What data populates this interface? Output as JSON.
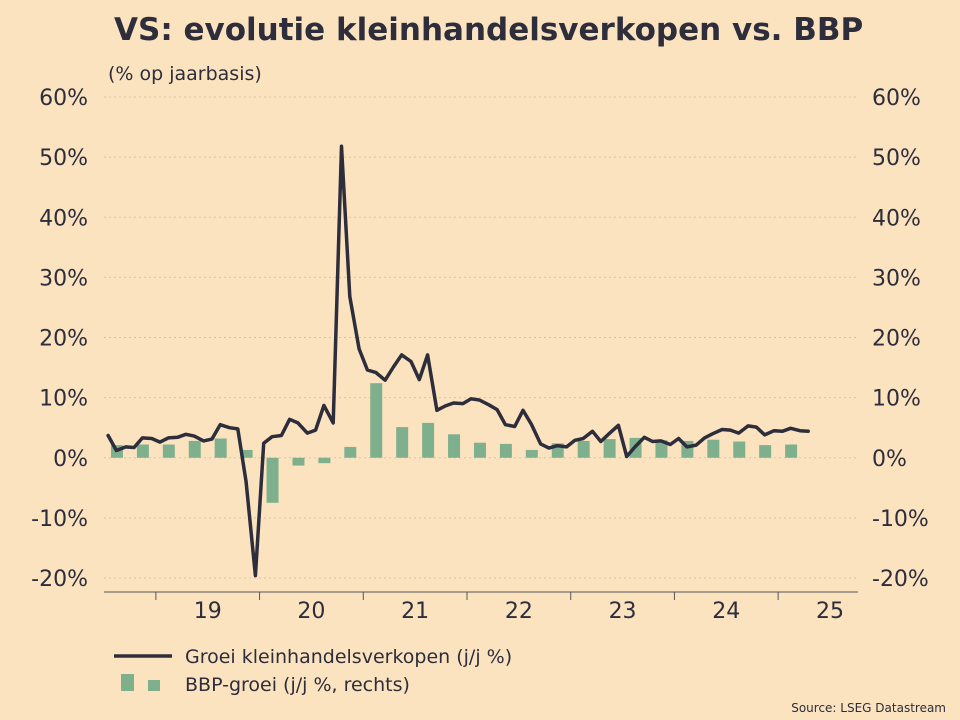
{
  "chart_data": {
    "type": "line",
    "title": "VS: evolutie kleinhandelsverkopen vs. BBP",
    "subtitle": "(% op jaarbasis)",
    "source": "Source: LSEG Datastream",
    "y_ticks_left": [
      "60%",
      "50%",
      "40%",
      "30%",
      "20%",
      "10%",
      "0%",
      "-10%",
      "-20%"
    ],
    "y_ticks_right": [
      "60%",
      "50%",
      "40%",
      "30%",
      "20%",
      "10%",
      "0%",
      "-10%",
      "-20%"
    ],
    "ylim": [
      -20,
      60
    ],
    "x_ticks": [
      "19",
      "20",
      "21",
      "22",
      "23",
      "24",
      "25"
    ],
    "xlim": [
      2018.5,
      2025.77
    ],
    "legend": {
      "line_label": "Groei kleinhandelsverkopen (j/j %)",
      "bar_label": "BBP-groei (j/j %, rechts)"
    },
    "series": [
      {
        "name": "Groei kleinhandelsverkopen (j/j %)",
        "type": "line",
        "axis": "left",
        "x": [
          2018.54,
          2018.62,
          2018.71,
          2018.79,
          2018.87,
          2018.96,
          2019.04,
          2019.12,
          2019.21,
          2019.29,
          2019.37,
          2019.46,
          2019.54,
          2019.62,
          2019.71,
          2019.79,
          2019.87,
          2019.96,
          2020.04,
          2020.12,
          2020.21,
          2020.29,
          2020.37,
          2020.46,
          2020.54,
          2020.62,
          2020.71,
          2020.79,
          2020.87,
          2020.96,
          2021.04,
          2021.12,
          2021.21,
          2021.29,
          2021.37,
          2021.46,
          2021.54,
          2021.62,
          2021.71,
          2021.79,
          2021.87,
          2021.96,
          2022.04,
          2022.12,
          2022.21,
          2022.29,
          2022.37,
          2022.46,
          2022.54,
          2022.62,
          2022.71,
          2022.79,
          2022.87,
          2022.96,
          2023.04,
          2023.12,
          2023.21,
          2023.29,
          2023.37,
          2023.46,
          2023.54,
          2023.62,
          2023.71,
          2023.79,
          2023.87,
          2023.96,
          2024.04,
          2024.12,
          2024.21,
          2024.29,
          2024.37,
          2024.46,
          2024.54,
          2024.62,
          2024.71,
          2024.79,
          2024.87,
          2024.96,
          2025.04,
          2025.12,
          2025.21,
          2025.29
        ],
        "values": [
          3.7,
          1.2,
          1.8,
          1.7,
          3.3,
          3.2,
          2.6,
          3.3,
          3.4,
          3.9,
          3.6,
          2.8,
          3.1,
          5.5,
          5.0,
          4.8,
          -4.0,
          -19.6,
          2.4,
          3.5,
          3.7,
          6.4,
          5.8,
          4.1,
          4.6,
          8.7,
          5.8,
          51.8,
          26.8,
          18.1,
          14.6,
          14.2,
          12.9,
          15.1,
          17.1,
          16.0,
          13.0,
          17.1,
          7.9,
          8.6,
          9.1,
          9.0,
          9.8,
          9.6,
          8.8,
          8.0,
          5.5,
          5.2,
          7.9,
          5.6,
          2.3,
          1.6,
          2.0,
          1.8,
          2.9,
          3.2,
          4.4,
          2.7,
          4.0,
          5.4,
          0.2,
          1.8,
          3.4,
          2.7,
          2.8,
          2.2,
          3.2,
          1.8,
          2.1,
          3.3,
          4.0,
          4.7,
          4.6,
          4.1,
          5.3,
          5.1,
          3.8,
          4.5,
          4.4,
          4.9,
          4.5,
          4.4
        ]
      },
      {
        "name": "BBP-groei (j/j %, rechts)",
        "type": "bar",
        "axis": "right",
        "x": [
          2018.625,
          2018.875,
          2019.125,
          2019.375,
          2019.625,
          2019.875,
          2020.125,
          2020.375,
          2020.625,
          2020.875,
          2021.125,
          2021.375,
          2021.625,
          2021.875,
          2022.125,
          2022.375,
          2022.625,
          2022.875,
          2023.125,
          2023.375,
          2023.625,
          2023.875,
          2024.125,
          2024.375,
          2024.625,
          2024.875,
          2025.125
        ],
        "values": [
          2.1,
          2.2,
          2.2,
          2.8,
          3.2,
          1.3,
          -7.5,
          -1.3,
          -0.9,
          1.8,
          12.4,
          5.1,
          5.8,
          3.9,
          2.5,
          2.3,
          1.3,
          2.4,
          2.8,
          3.1,
          3.3,
          2.9,
          2.8,
          3.0,
          2.7,
          2.1,
          2.2
        ]
      }
    ],
    "colors": {
      "line": "#2d2d3c",
      "bar": "#7fb08e",
      "background": "#fbe3c0"
    }
  }
}
